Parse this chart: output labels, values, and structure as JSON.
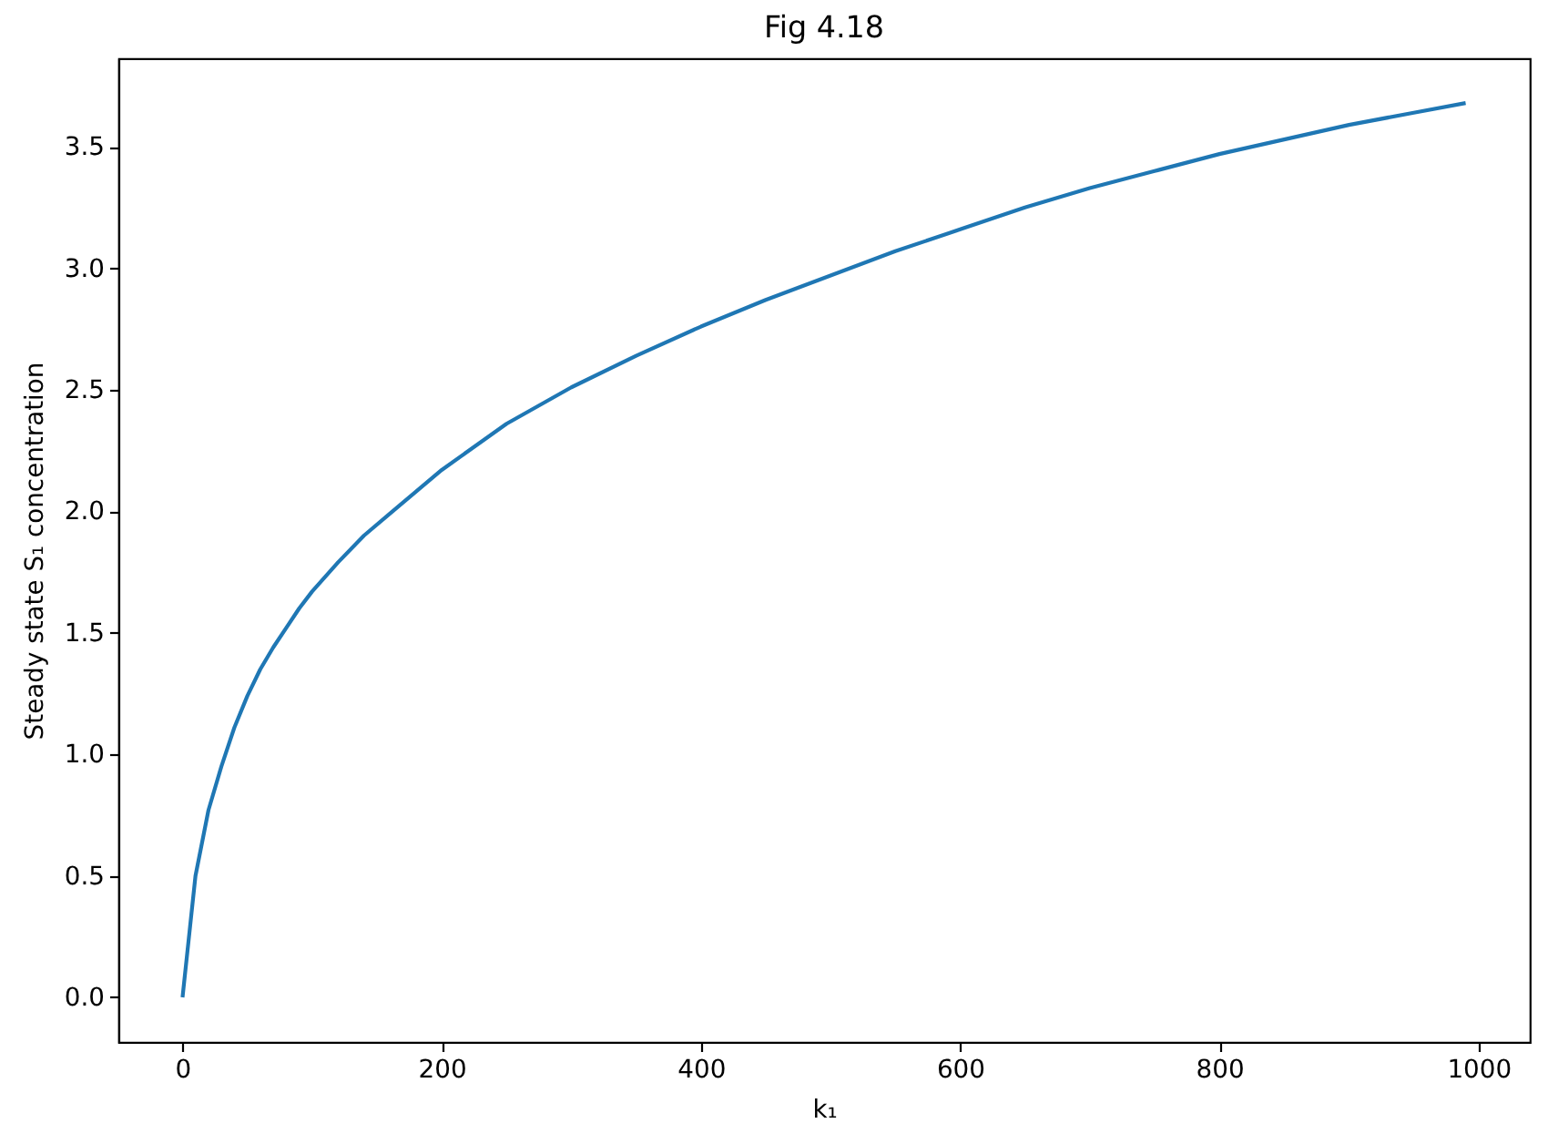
{
  "chart_data": {
    "type": "line",
    "title": "Fig 4.18",
    "xlabel": "k₁",
    "ylabel": "Steady state S₁ concentration",
    "x": [
      0,
      10,
      20,
      30,
      40,
      50,
      60,
      70,
      80,
      90,
      100,
      120,
      140,
      160,
      180,
      200,
      250,
      300,
      350,
      400,
      450,
      500,
      550,
      600,
      650,
      700,
      750,
      800,
      850,
      900,
      950,
      990
    ],
    "series": [
      {
        "color": "#1f77b4",
        "values": [
          0,
          0.5,
          0.77,
          0.95,
          1.11,
          1.24,
          1.35,
          1.44,
          1.52,
          1.6,
          1.67,
          1.79,
          1.9,
          1.99,
          2.08,
          2.17,
          2.36,
          2.51,
          2.64,
          2.76,
          2.87,
          2.97,
          3.07,
          3.16,
          3.25,
          3.33,
          3.4,
          3.47,
          3.53,
          3.59,
          3.64,
          3.68
        ]
      }
    ],
    "xlim": [
      -49.5,
      1039.5
    ],
    "xticks": [
      0,
      200,
      400,
      600,
      800,
      1000
    ],
    "ylim": [
      -0.184,
      3.864
    ],
    "yticks": [
      {
        "value": 0,
        "label": "0.0"
      },
      0.5,
      {
        "value": 1,
        "label": "1.0"
      },
      1.5,
      {
        "value": 2,
        "label": "2.0"
      },
      2.5,
      {
        "value": 3,
        "label": "3.0"
      },
      3.5
    ]
  }
}
